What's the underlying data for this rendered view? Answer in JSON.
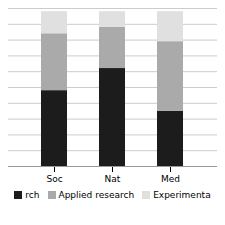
{
  "chart_data": {
    "type": "bar",
    "stacked": true,
    "categories": [
      "Soc",
      "Nat",
      "Med"
    ],
    "series": [
      {
        "name": "rch",
        "color": "#1c1c1c",
        "values": [
          48,
          62,
          35
        ]
      },
      {
        "name": "Applied research",
        "color": "#aaaaaa",
        "values": [
          36,
          26,
          44
        ]
      },
      {
        "name": "Experimenta",
        "color": "#e0e0e0",
        "values": [
          14,
          10,
          19
        ]
      }
    ],
    "ylim": [
      0,
      100
    ],
    "yticks": [
      0,
      10,
      20,
      30,
      40,
      50,
      60,
      70,
      80,
      90,
      100
    ],
    "grid": true,
    "legend": "bottom",
    "tick_labels": "x"
  }
}
